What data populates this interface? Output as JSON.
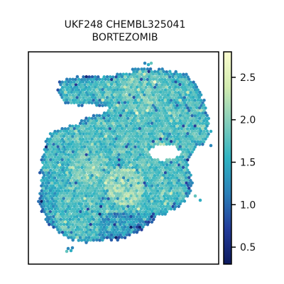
{
  "chart_data": {
    "type": "heatmap",
    "title_lines": [
      "UKF248 CHEMBL325041",
      "BORTEZOMIB"
    ],
    "plot": "spatial hexbin scatter of a tissue section, colored by value",
    "axes_visible": false,
    "colormap": "YlGnBu_r",
    "colormap_stops": [
      "#0d1a5e",
      "#233c9b",
      "#2b7fb8",
      "#2fb3c2",
      "#83cdbb",
      "#d2ebb0",
      "#fbfdd0"
    ],
    "colorbar": {
      "range": [
        0.3,
        2.8
      ],
      "ticks": [
        0.5,
        1.0,
        1.5,
        2.0,
        2.5
      ],
      "tick_labels": [
        "0.5",
        "1.0",
        "1.5",
        "2.0",
        "2.5"
      ],
      "placement": "right"
    },
    "value_distribution": {
      "typical": 1.7,
      "min": 0.3,
      "max": 2.8
    }
  }
}
